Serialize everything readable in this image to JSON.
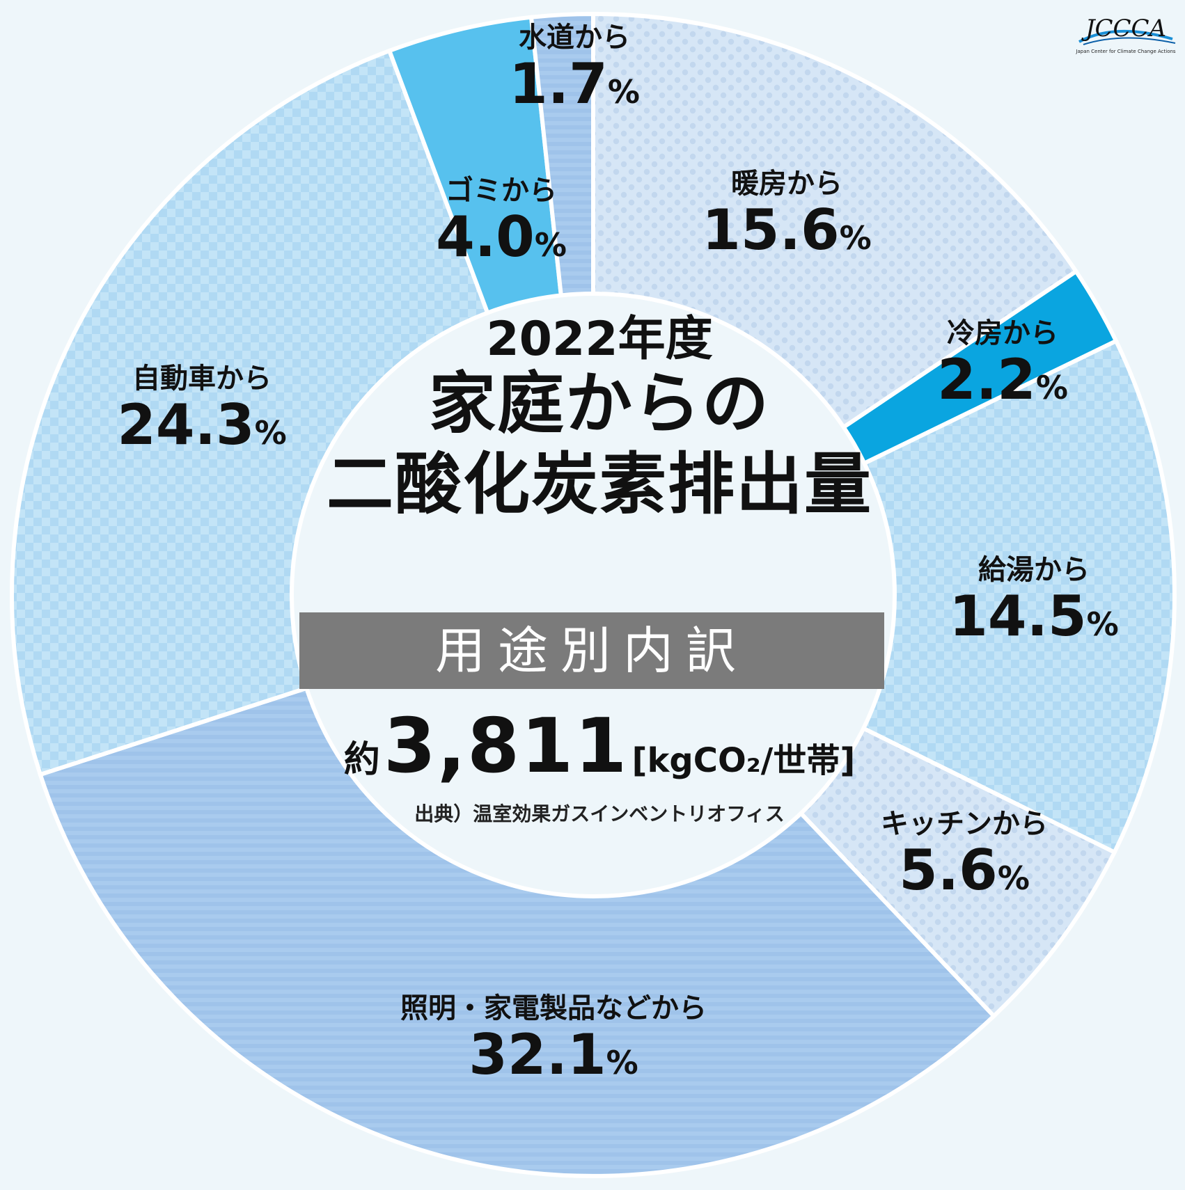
{
  "header": {
    "year": "2022年度",
    "title_line1": "家庭からの",
    "title_line2": "二酸化炭素排出量",
    "subtitle": "用途別内訳"
  },
  "total": {
    "prefix": "約",
    "value": "3,811",
    "unit": "[kgCO₂/世帯]"
  },
  "source": "出典）温室効果ガスインベントリオフィス",
  "logo": {
    "text": "JCCCA",
    "subtext": "Japan Center for Climate Change Actions"
  },
  "chart_data": {
    "type": "pie",
    "title": "家庭からの二酸化炭素排出量",
    "slices": [
      {
        "label": "暖房から",
        "value": 15.6,
        "display": "15.6",
        "color": "#d6e6f6",
        "pattern": "dots"
      },
      {
        "label": "冷房から",
        "value": 2.2,
        "display": "2.2",
        "color": "#0aa5e0",
        "pattern": "solid"
      },
      {
        "label": "給湯から",
        "value": 14.5,
        "display": "14.5",
        "color": "#bfe3f7",
        "pattern": "checker"
      },
      {
        "label": "キッチンから",
        "value": 5.6,
        "display": "5.6",
        "color": "#d3e4f4",
        "pattern": "dots"
      },
      {
        "label": "照明・家電製品などから",
        "value": 32.1,
        "display": "32.1",
        "color": "#a8cbee",
        "pattern": "stripes"
      },
      {
        "label": "自動車から",
        "value": 24.3,
        "display": "24.3",
        "color": "#bfe3f7",
        "pattern": "checker"
      },
      {
        "label": "ゴミから",
        "value": 4.0,
        "display": "4.0",
        "color": "#57c1ee",
        "pattern": "solid"
      },
      {
        "label": "水道から",
        "value": 1.7,
        "display": "1.7",
        "color": "#a8cbee",
        "pattern": "stripes"
      }
    ],
    "percent_sign": "%"
  }
}
